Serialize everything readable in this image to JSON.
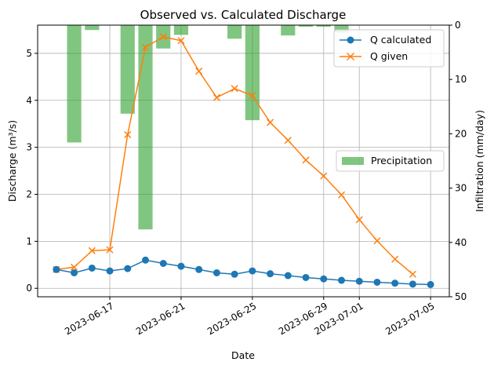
{
  "chart_data": {
    "type": "line",
    "title": "Observed vs. Calculated Discharge",
    "xlabel": "Date",
    "ylabel": "Discharge (m³/s)",
    "ylabel_right": "Infiltration (mm/day)",
    "x_ticks": [
      "2023-06-17",
      "2023-06-21",
      "2023-06-25",
      "2023-06-29",
      "2023-07-01",
      "2023-07-05"
    ],
    "y_ticks": [
      "0",
      "1",
      "2",
      "3",
      "4",
      "5"
    ],
    "y_right_ticks": [
      "0",
      "10",
      "20",
      "30",
      "40",
      "50"
    ],
    "ylim": [
      -0.18,
      5.6
    ],
    "ylim_right": [
      50,
      0
    ],
    "grid": true,
    "colors": {
      "calculated": "#1f77b4",
      "given": "#ff7f0e",
      "precip": "#2ca02c"
    },
    "dates": [
      "2023-06-14",
      "2023-06-15",
      "2023-06-16",
      "2023-06-17",
      "2023-06-18",
      "2023-06-19",
      "2023-06-20",
      "2023-06-21",
      "2023-06-22",
      "2023-06-23",
      "2023-06-24",
      "2023-06-25",
      "2023-06-26",
      "2023-06-27",
      "2023-06-28",
      "2023-06-29",
      "2023-06-30",
      "2023-07-01",
      "2023-07-02",
      "2023-07-03",
      "2023-07-04",
      "2023-07-05"
    ],
    "series": [
      {
        "name": "Q calculated",
        "axis": "left",
        "marker": "circle",
        "values": [
          0.4,
          0.33,
          0.43,
          0.37,
          0.42,
          0.6,
          0.53,
          0.47,
          0.4,
          0.33,
          0.3,
          0.37,
          0.31,
          0.27,
          0.23,
          0.2,
          0.17,
          0.15,
          0.13,
          0.11,
          0.09,
          0.08
        ]
      },
      {
        "name": "Q given",
        "axis": "left",
        "marker": "x",
        "values": [
          0.4,
          0.45,
          0.8,
          0.82,
          3.27,
          5.13,
          5.35,
          5.27,
          4.62,
          4.06,
          4.25,
          4.1,
          3.53,
          3.15,
          2.73,
          2.39,
          1.99,
          1.46,
          1.01,
          0.62,
          0.3,
          null
        ]
      },
      {
        "name": "Precipitation",
        "axis": "right",
        "type": "bar",
        "values": [
          0,
          21.6,
          0.9,
          0,
          16.3,
          37.6,
          4.3,
          1.8,
          0,
          0,
          2.5,
          17.5,
          0,
          1.9,
          0.3,
          0.3,
          1.4,
          0,
          0,
          0,
          0,
          0
        ]
      }
    ]
  }
}
